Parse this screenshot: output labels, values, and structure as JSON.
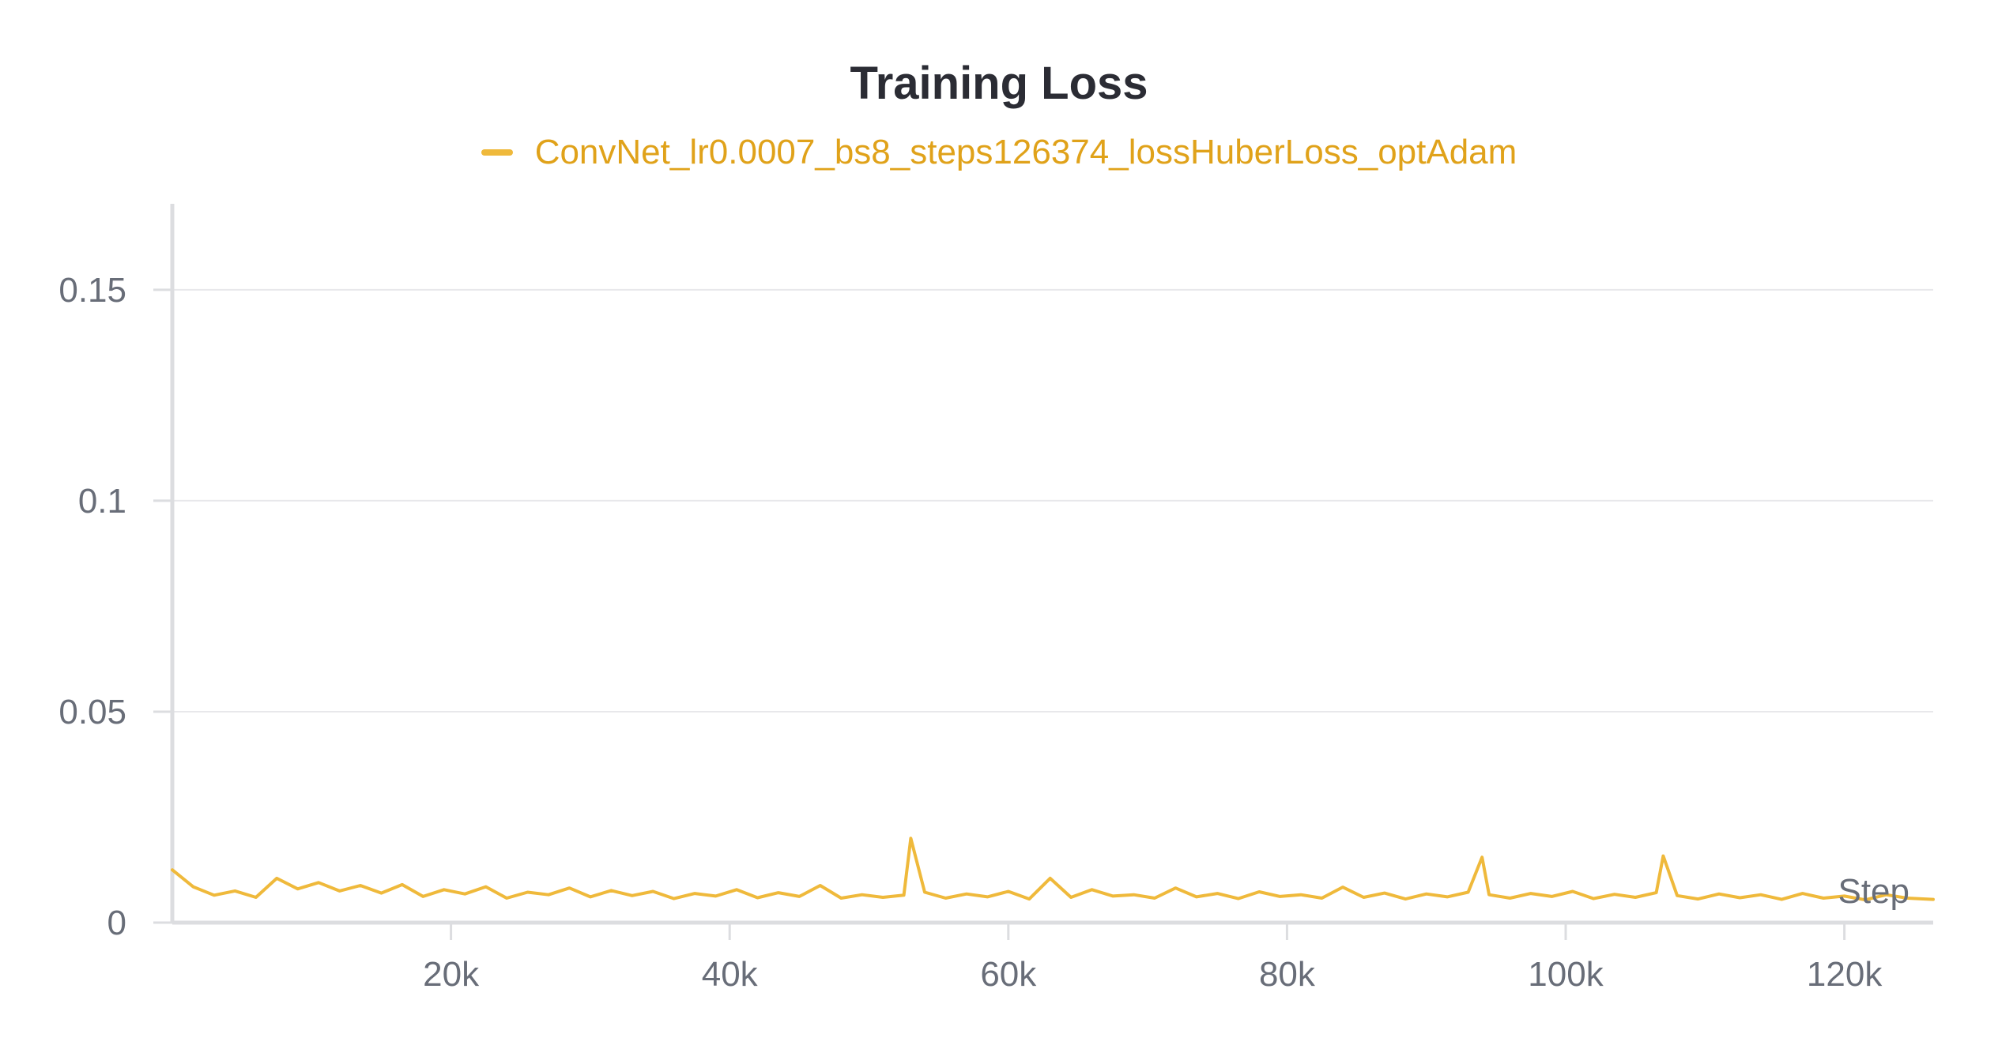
{
  "title": "Training Loss",
  "legend": {
    "label": "ConvNet_lr0.0007_bs8_steps126374_lossHuberLoss_optAdam"
  },
  "colors": {
    "series": "#efb93b",
    "legend_text": "#e0a21a",
    "grid": "#e8e8eb",
    "axis": "#dcdde0",
    "tick_text": "#686d78"
  },
  "chart_data": {
    "type": "line",
    "title": "Training Loss",
    "xlabel": "Step",
    "ylabel": "",
    "xlim": [
      0,
      126374
    ],
    "ylim": [
      0,
      0.17
    ],
    "x_ticks": [
      20000,
      40000,
      60000,
      80000,
      100000,
      120000
    ],
    "x_tick_labels": [
      "20k",
      "40k",
      "60k",
      "80k",
      "100k",
      "120k"
    ],
    "y_ticks": [
      0,
      0.05,
      0.1,
      0.15
    ],
    "y_tick_labels": [
      "0",
      "0.05",
      "0.1",
      "0.15"
    ],
    "grid": true,
    "legend_position": "top-center",
    "series": [
      {
        "name": "ConvNet_lr0.0007_bs8_steps126374_lossHuberLoss_optAdam",
        "x": [
          0,
          1500,
          3000,
          4500,
          6000,
          7500,
          9000,
          10500,
          12000,
          13500,
          15000,
          16500,
          18000,
          19500,
          21000,
          22500,
          24000,
          25500,
          27000,
          28500,
          30000,
          31500,
          33000,
          34500,
          36000,
          37500,
          39000,
          40500,
          42000,
          43500,
          45000,
          46500,
          48000,
          49500,
          51000,
          52500,
          53000,
          54000,
          55500,
          57000,
          58500,
          60000,
          61500,
          63000,
          64500,
          66000,
          67500,
          69000,
          70500,
          72000,
          73500,
          75000,
          76500,
          78000,
          79500,
          81000,
          82500,
          84000,
          85500,
          87000,
          88500,
          90000,
          91500,
          93000,
          94000,
          94500,
          96000,
          97500,
          99000,
          100500,
          102000,
          103500,
          105000,
          106500,
          107000,
          108000,
          109500,
          111000,
          112500,
          114000,
          115500,
          117000,
          118500,
          120000,
          121500,
          123000,
          124500,
          126374
        ],
        "values": [
          0.0125,
          0.0085,
          0.0065,
          0.0075,
          0.006,
          0.0105,
          0.008,
          0.0095,
          0.0075,
          0.0088,
          0.007,
          0.009,
          0.0062,
          0.0078,
          0.0068,
          0.0085,
          0.0058,
          0.0072,
          0.0066,
          0.0082,
          0.0061,
          0.0076,
          0.0064,
          0.0074,
          0.0057,
          0.0069,
          0.0063,
          0.0078,
          0.0059,
          0.0071,
          0.0062,
          0.0088,
          0.0058,
          0.0066,
          0.006,
          0.0065,
          0.02,
          0.0072,
          0.0058,
          0.0068,
          0.0061,
          0.0074,
          0.0056,
          0.0105,
          0.006,
          0.0078,
          0.0063,
          0.0066,
          0.0058,
          0.0082,
          0.0061,
          0.0069,
          0.0057,
          0.0073,
          0.0062,
          0.0066,
          0.0058,
          0.0084,
          0.006,
          0.007,
          0.0056,
          0.0068,
          0.0061,
          0.0072,
          0.0155,
          0.0066,
          0.0058,
          0.0069,
          0.0062,
          0.0074,
          0.0057,
          0.0067,
          0.006,
          0.0071,
          0.0158,
          0.0064,
          0.0056,
          0.0068,
          0.0059,
          0.0066,
          0.0055,
          0.0069,
          0.0058,
          0.0063,
          0.0054,
          0.0066,
          0.0058,
          0.0055
        ]
      }
    ]
  }
}
